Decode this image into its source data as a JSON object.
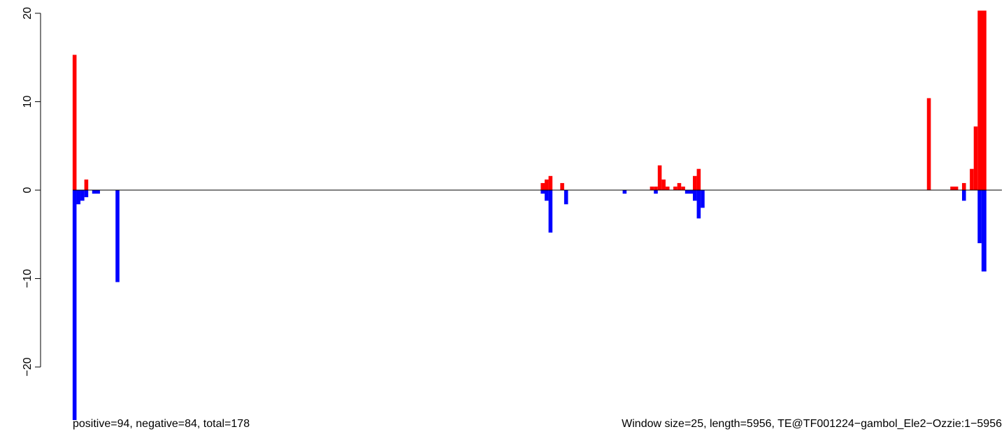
{
  "chart_data": {
    "type": "bar",
    "title": "",
    "xlabel": "",
    "ylabel": "",
    "ylim": [
      -26,
      20
    ],
    "x_range": [
      1,
      5956
    ],
    "window_size": 25,
    "y_ticks": [
      -20,
      -10,
      0,
      10,
      20
    ],
    "y_tick_labels": [
      "−20",
      "−10",
      "0",
      "10",
      "20"
    ],
    "zero_line": true,
    "grid": false,
    "series": [
      {
        "color": "#ff0000",
        "bars": [
          {
            "start": 1,
            "end": 25,
            "value": 15.3
          },
          {
            "start": 76,
            "end": 100,
            "value": 1.2
          },
          {
            "start": 3001,
            "end": 3025,
            "value": 0.8
          },
          {
            "start": 3026,
            "end": 3050,
            "value": 1.2
          },
          {
            "start": 3051,
            "end": 3075,
            "value": 1.6
          },
          {
            "start": 3126,
            "end": 3150,
            "value": 0.8
          },
          {
            "start": 3701,
            "end": 3725,
            "value": 0.4
          },
          {
            "start": 3726,
            "end": 3750,
            "value": 0.4
          },
          {
            "start": 3751,
            "end": 3775,
            "value": 2.8
          },
          {
            "start": 3776,
            "end": 3800,
            "value": 1.2
          },
          {
            "start": 3801,
            "end": 3825,
            "value": 0.4
          },
          {
            "start": 3851,
            "end": 3875,
            "value": 0.4
          },
          {
            "start": 3876,
            "end": 3900,
            "value": 0.8
          },
          {
            "start": 3901,
            "end": 3925,
            "value": 0.4
          },
          {
            "start": 3976,
            "end": 4000,
            "value": 1.6
          },
          {
            "start": 4001,
            "end": 4025,
            "value": 2.4
          },
          {
            "start": 5476,
            "end": 5500,
            "value": 10.4
          },
          {
            "start": 5626,
            "end": 5675,
            "value": 0.4
          },
          {
            "start": 5701,
            "end": 5725,
            "value": 0.8
          },
          {
            "start": 5751,
            "end": 5775,
            "value": 2.4
          },
          {
            "start": 5776,
            "end": 5800,
            "value": 7.2
          },
          {
            "start": 5801,
            "end": 5856,
            "value": 20.3
          }
        ]
      },
      {
        "color": "#0000ff",
        "bars": [
          {
            "start": 1,
            "end": 25,
            "value": -26.0
          },
          {
            "start": 26,
            "end": 50,
            "value": -1.6
          },
          {
            "start": 51,
            "end": 75,
            "value": -1.2
          },
          {
            "start": 76,
            "end": 100,
            "value": -0.8
          },
          {
            "start": 126,
            "end": 175,
            "value": -0.4
          },
          {
            "start": 276,
            "end": 300,
            "value": -10.4
          },
          {
            "start": 3001,
            "end": 3025,
            "value": -0.4
          },
          {
            "start": 3026,
            "end": 3050,
            "value": -1.2
          },
          {
            "start": 3051,
            "end": 3075,
            "value": -4.8
          },
          {
            "start": 3151,
            "end": 3175,
            "value": -1.6
          },
          {
            "start": 3526,
            "end": 3550,
            "value": -0.4
          },
          {
            "start": 3726,
            "end": 3750,
            "value": -0.4
          },
          {
            "start": 3926,
            "end": 3975,
            "value": -0.4
          },
          {
            "start": 3976,
            "end": 4000,
            "value": -1.2
          },
          {
            "start": 4001,
            "end": 4025,
            "value": -3.2
          },
          {
            "start": 4026,
            "end": 4050,
            "value": -2.0
          },
          {
            "start": 5701,
            "end": 5725,
            "value": -1.2
          },
          {
            "start": 5801,
            "end": 5825,
            "value": -6.0
          },
          {
            "start": 5826,
            "end": 5856,
            "value": -9.2
          }
        ]
      }
    ]
  },
  "footer": {
    "left": "positive=94, negative=84, total=178",
    "right": "Window size=25, length=5956, TE@TF001224−gambol_Ele2−Ozzie:1−5956"
  }
}
